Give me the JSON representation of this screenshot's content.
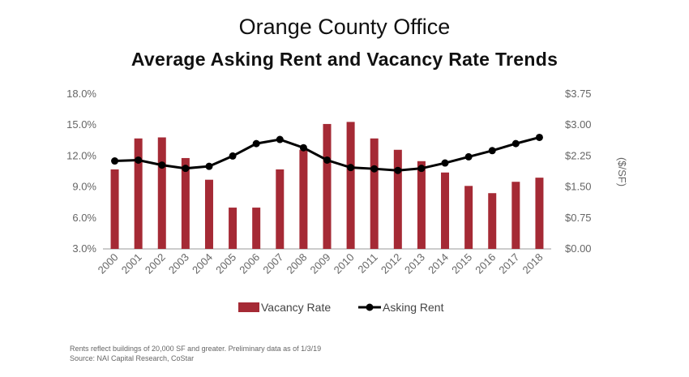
{
  "title": "Orange County Office",
  "subtitle": "Average Asking Rent and Vacancy Rate Trends",
  "chart_data": {
    "type": "bar+line",
    "categories": [
      "2000",
      "2001",
      "2002",
      "2003",
      "2004",
      "2005",
      "2006",
      "2007",
      "2008",
      "2009",
      "2010",
      "2011",
      "2012",
      "2013",
      "2014",
      "2015",
      "2016",
      "2017",
      "2018"
    ],
    "series": [
      {
        "name": "Vacancy Rate",
        "kind": "bar",
        "axis": "left",
        "color": "#a52a35",
        "values": [
          10.7,
          13.7,
          13.8,
          11.8,
          9.7,
          7.0,
          7.0,
          10.7,
          12.6,
          15.1,
          15.3,
          13.7,
          12.6,
          11.5,
          10.4,
          9.1,
          8.4,
          9.5,
          9.9
        ]
      },
      {
        "name": "Asking Rent",
        "kind": "line",
        "axis": "right",
        "color": "#000000",
        "values": [
          2.13,
          2.15,
          2.03,
          1.95,
          2.0,
          2.25,
          2.55,
          2.65,
          2.45,
          2.15,
          1.97,
          1.94,
          1.9,
          1.95,
          2.08,
          2.23,
          2.38,
          2.55,
          2.7
        ]
      }
    ],
    "yleft": {
      "min": 3.0,
      "max": 18.0,
      "ticks": [
        "18.0%",
        "15.0%",
        "12.0%",
        "9.0%",
        "6.0%",
        "3.0%"
      ],
      "tick_values": [
        18,
        15,
        12,
        9,
        6,
        3
      ]
    },
    "yright": {
      "min": 0.0,
      "max": 3.75,
      "label": "($/SF)",
      "ticks": [
        "$3.75",
        "$3.00",
        "$2.25",
        "$1.50",
        "$0.75",
        "$0.00"
      ],
      "tick_values": [
        3.75,
        3.0,
        2.25,
        1.5,
        0.75,
        0.0
      ]
    },
    "legend": [
      "Vacancy Rate",
      "Asking Rent"
    ],
    "legend_position": "bottom-center"
  },
  "footnotes": [
    "Rents reflect buildings of 20,000 SF and greater. Preliminary data as of 1/3/19",
    "Source: NAI Capital Research, CoStar"
  ]
}
